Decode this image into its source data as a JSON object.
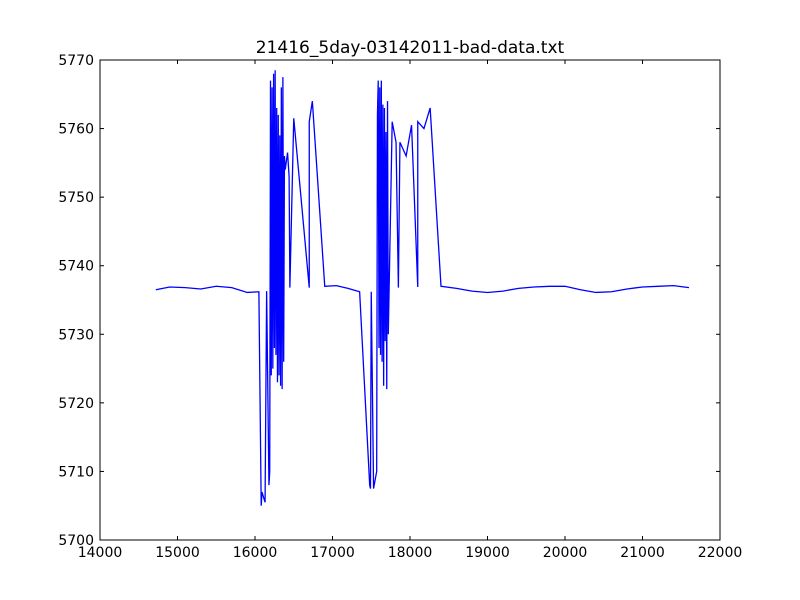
{
  "chart_data": {
    "type": "line",
    "title": "21416_5day-03142011-bad-data.txt",
    "xlabel": "",
    "ylabel": "",
    "xlim": [
      14000,
      22000
    ],
    "ylim": [
      5700,
      5770
    ],
    "x_ticks": [
      14000,
      15000,
      16000,
      17000,
      18000,
      19000,
      20000,
      21000,
      22000
    ],
    "y_ticks": [
      5700,
      5710,
      5720,
      5730,
      5740,
      5750,
      5760,
      5770
    ],
    "grid": false,
    "legend": "none",
    "series_color": "#0000ff",
    "baseline": [
      [
        14720,
        5736.5
      ],
      [
        14900,
        5736.9
      ],
      [
        15100,
        5736.8
      ],
      [
        15300,
        5736.6
      ],
      [
        15500,
        5737.0
      ],
      [
        15700,
        5736.8
      ],
      [
        15900,
        5736.1
      ],
      [
        16050,
        5736.2
      ],
      [
        16150,
        5736.3
      ],
      [
        16450,
        5736.8
      ],
      [
        16700,
        5736.8
      ],
      [
        16900,
        5737.0
      ],
      [
        17050,
        5737.1
      ],
      [
        17200,
        5736.7
      ],
      [
        17350,
        5736.2
      ],
      [
        17500,
        5736.2
      ],
      [
        17850,
        5736.8
      ],
      [
        18100,
        5736.9
      ],
      [
        18400,
        5737.0
      ],
      [
        18600,
        5736.7
      ],
      [
        18800,
        5736.3
      ],
      [
        19000,
        5736.1
      ],
      [
        19200,
        5736.3
      ],
      [
        19400,
        5736.7
      ],
      [
        19600,
        5736.9
      ],
      [
        19800,
        5737.0
      ],
      [
        20000,
        5737.0
      ],
      [
        20200,
        5736.5
      ],
      [
        20400,
        5736.1
      ],
      [
        20600,
        5736.2
      ],
      [
        20800,
        5736.6
      ],
      [
        21000,
        5736.9
      ],
      [
        21200,
        5737.0
      ],
      [
        21400,
        5737.1
      ],
      [
        21600,
        5736.8
      ]
    ],
    "spikes": [
      [
        16080,
        5705
      ],
      [
        16090,
        5707
      ],
      [
        16130,
        5705.5
      ],
      [
        16180,
        5708
      ],
      [
        16190,
        5710
      ],
      [
        16200,
        5767
      ],
      [
        16210,
        5724
      ],
      [
        16220,
        5766
      ],
      [
        16230,
        5725
      ],
      [
        16240,
        5768
      ],
      [
        16250,
        5728
      ],
      [
        16260,
        5768.5
      ],
      [
        16270,
        5727
      ],
      [
        16280,
        5763
      ],
      [
        16290,
        5723
      ],
      [
        16300,
        5762
      ],
      [
        16310,
        5724
      ],
      [
        16320,
        5759
      ],
      [
        16330,
        5722.5
      ],
      [
        16340,
        5766
      ],
      [
        16350,
        5722
      ],
      [
        16360,
        5767.5
      ],
      [
        16370,
        5726
      ],
      [
        16380,
        5756
      ],
      [
        16390,
        5754
      ],
      [
        16420,
        5756.5
      ],
      [
        16440,
        5753
      ],
      [
        16500,
        5761.5
      ],
      [
        16700,
        5761
      ],
      [
        16740,
        5764
      ],
      [
        17480,
        5708
      ],
      [
        17490,
        5707.5
      ],
      [
        17530,
        5707.5
      ],
      [
        17570,
        5710
      ],
      [
        17580,
        5762
      ],
      [
        17590,
        5767
      ],
      [
        17600,
        5728
      ],
      [
        17610,
        5766
      ],
      [
        17620,
        5727
      ],
      [
        17630,
        5767
      ],
      [
        17640,
        5726
      ],
      [
        17650,
        5763.5
      ],
      [
        17660,
        5722.5
      ],
      [
        17670,
        5763
      ],
      [
        17680,
        5729
      ],
      [
        17690,
        5759.5
      ],
      [
        17700,
        5722
      ],
      [
        17710,
        5764
      ],
      [
        17720,
        5730
      ],
      [
        17770,
        5761
      ],
      [
        17820,
        5758
      ],
      [
        17870,
        5758
      ],
      [
        17950,
        5756
      ],
      [
        18020,
        5760.5
      ],
      [
        18100,
        5761
      ],
      [
        18180,
        5760
      ],
      [
        18260,
        5763
      ]
    ]
  }
}
